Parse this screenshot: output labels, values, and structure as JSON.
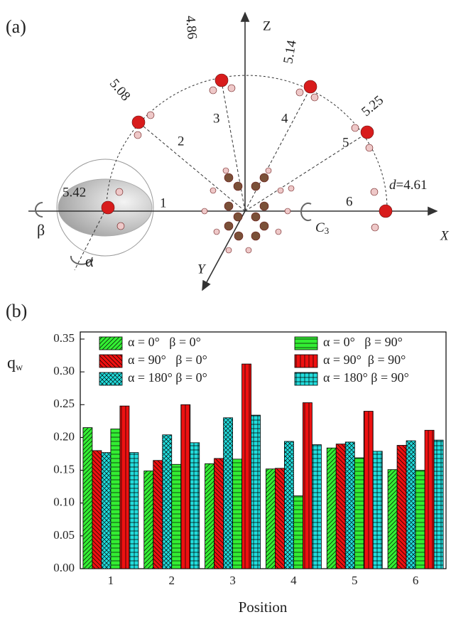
{
  "panel_a_label": "(a)",
  "panel_b_label": "(b)",
  "diagram": {
    "axes": {
      "x": "X",
      "y": "Y",
      "z": "Z"
    },
    "distances": [
      "5.42",
      "5.08",
      "4.86",
      "5.14",
      "5.25"
    ],
    "d_symbol": "d",
    "d_value": "=4.61",
    "positions": [
      "1",
      "2",
      "3",
      "4",
      "5",
      "6"
    ],
    "beta": "β",
    "alpha": "α",
    "c3_symbol": "C",
    "c3_subscript": "3"
  },
  "chart_data": {
    "type": "bar",
    "x_label": "Position",
    "y_label": "q",
    "y_label_subscript": "w",
    "categories": [
      "1",
      "2",
      "3",
      "4",
      "5",
      "6"
    ],
    "series": [
      {
        "name": "α = 0°   β = 0°",
        "color": "#33ee33",
        "pattern": "diagonal",
        "values": [
          0.215,
          0.149,
          0.16,
          0.152,
          0.184,
          0.151
        ]
      },
      {
        "name": "α = 90°   β = 0°",
        "color": "#ee1111",
        "pattern": "back-diagonal",
        "values": [
          0.18,
          0.165,
          0.168,
          0.153,
          0.19,
          0.188
        ]
      },
      {
        "name": "α = 180° β = 0°",
        "color": "#22dddd",
        "pattern": "crosshatch",
        "values": [
          0.177,
          0.204,
          0.23,
          0.194,
          0.193,
          0.195
        ]
      },
      {
        "name": "α = 0°   β = 90°",
        "color": "#33ee33",
        "pattern": "horizontal",
        "values": [
          0.213,
          0.159,
          0.167,
          0.111,
          0.169,
          0.15
        ]
      },
      {
        "name": "α = 90°  β = 90°",
        "color": "#ee1111",
        "pattern": "vertical",
        "values": [
          0.248,
          0.25,
          0.312,
          0.253,
          0.24,
          0.211
        ]
      },
      {
        "name": "α = 180° β = 90°",
        "color": "#22dddd",
        "pattern": "grid",
        "values": [
          0.177,
          0.192,
          0.234,
          0.189,
          0.179,
          0.196
        ]
      }
    ],
    "ylim": [
      0,
      0.35
    ],
    "yticks": [
      {
        "value": 0,
        "label": "0.00"
      },
      0.05,
      {
        "value": 0.1,
        "label": "0.10"
      },
      0.15,
      {
        "value": 0.2,
        "label": "0.20"
      },
      0.25,
      {
        "value": 0.3,
        "label": "0.30"
      },
      0.35
    ]
  }
}
